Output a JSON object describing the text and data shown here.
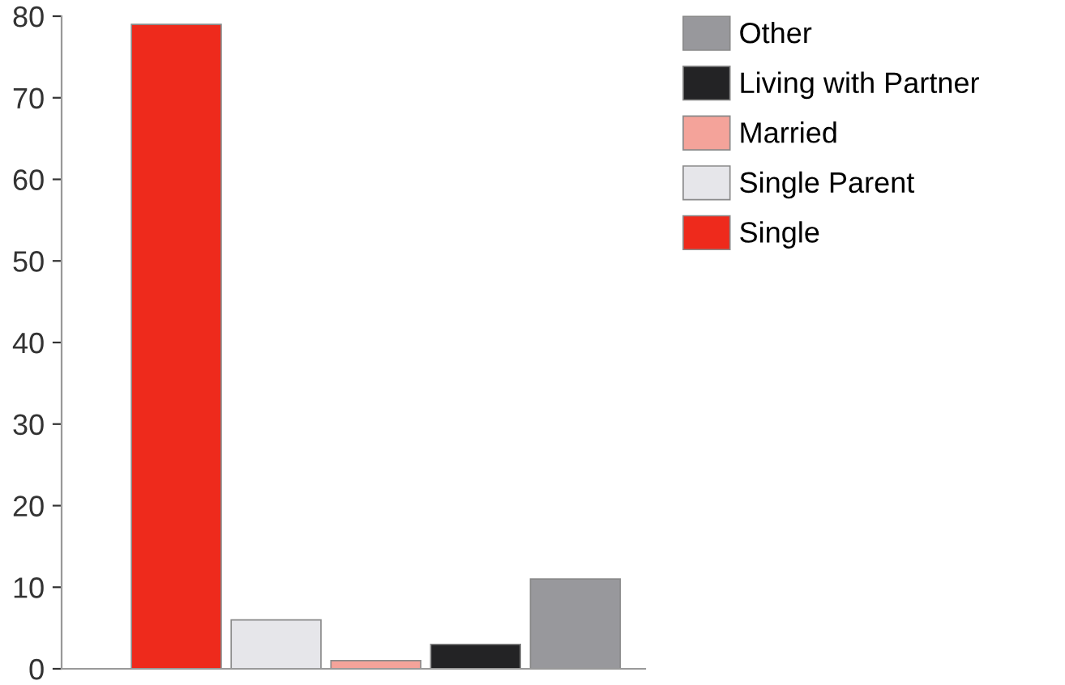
{
  "chart_data": {
    "type": "bar",
    "categories": [
      null,
      null,
      null,
      null,
      null
    ],
    "series": [
      {
        "name": "Single",
        "color": "#ee2a1c",
        "values": [
          79,
          null,
          null,
          null,
          null
        ]
      },
      {
        "name": "Single Parent",
        "color": "#e6e6ea",
        "values": [
          null,
          6,
          null,
          null,
          null
        ]
      },
      {
        "name": "Married",
        "color": "#f4a39a",
        "values": [
          null,
          null,
          1,
          null,
          null
        ]
      },
      {
        "name": "Living with Partner",
        "color": "#232325",
        "values": [
          null,
          null,
          null,
          3,
          null
        ]
      },
      {
        "name": "Other",
        "color": "#98989c",
        "values": [
          null,
          null,
          null,
          null,
          11
        ]
      }
    ],
    "ylim": [
      0,
      80
    ],
    "yticks": [
      0,
      10,
      20,
      30,
      40,
      50,
      60,
      70,
      80
    ],
    "grid": false,
    "legend": "top right"
  }
}
